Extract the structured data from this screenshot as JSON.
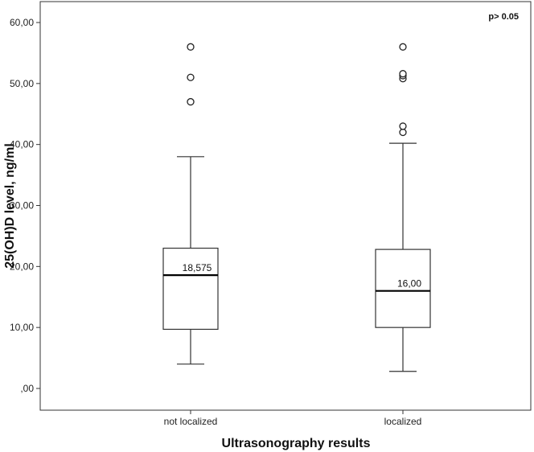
{
  "chart_data": {
    "type": "box",
    "xlabel": "Ultrasonography results",
    "ylabel": "25(OH)D level, ng/ml",
    "annotation": "p> 0.05",
    "ylim": [
      -6,
      64
    ],
    "yticks": [
      0,
      10,
      20,
      30,
      40,
      50,
      60
    ],
    "ytick_labels": [
      ",00",
      "10,00",
      "20,00",
      "30,00",
      "40,00",
      "50,00",
      "60,00"
    ],
    "categories": [
      "not localized",
      "localized"
    ],
    "boxes": [
      {
        "category": "not localized",
        "whisker_low": 4,
        "q1": 9.7,
        "median": 18.575,
        "median_label": "18,575",
        "q3": 23,
        "whisker_high": 38,
        "outliers": [
          47,
          51,
          56
        ]
      },
      {
        "category": "localized",
        "whisker_low": 2.8,
        "q1": 10,
        "median": 16,
        "median_label": "16,00",
        "q3": 22.8,
        "whisker_high": 40.2,
        "outliers": [
          42,
          43,
          50.8,
          51.3,
          51.6,
          56
        ]
      }
    ],
    "grid": false,
    "legend": "none"
  }
}
